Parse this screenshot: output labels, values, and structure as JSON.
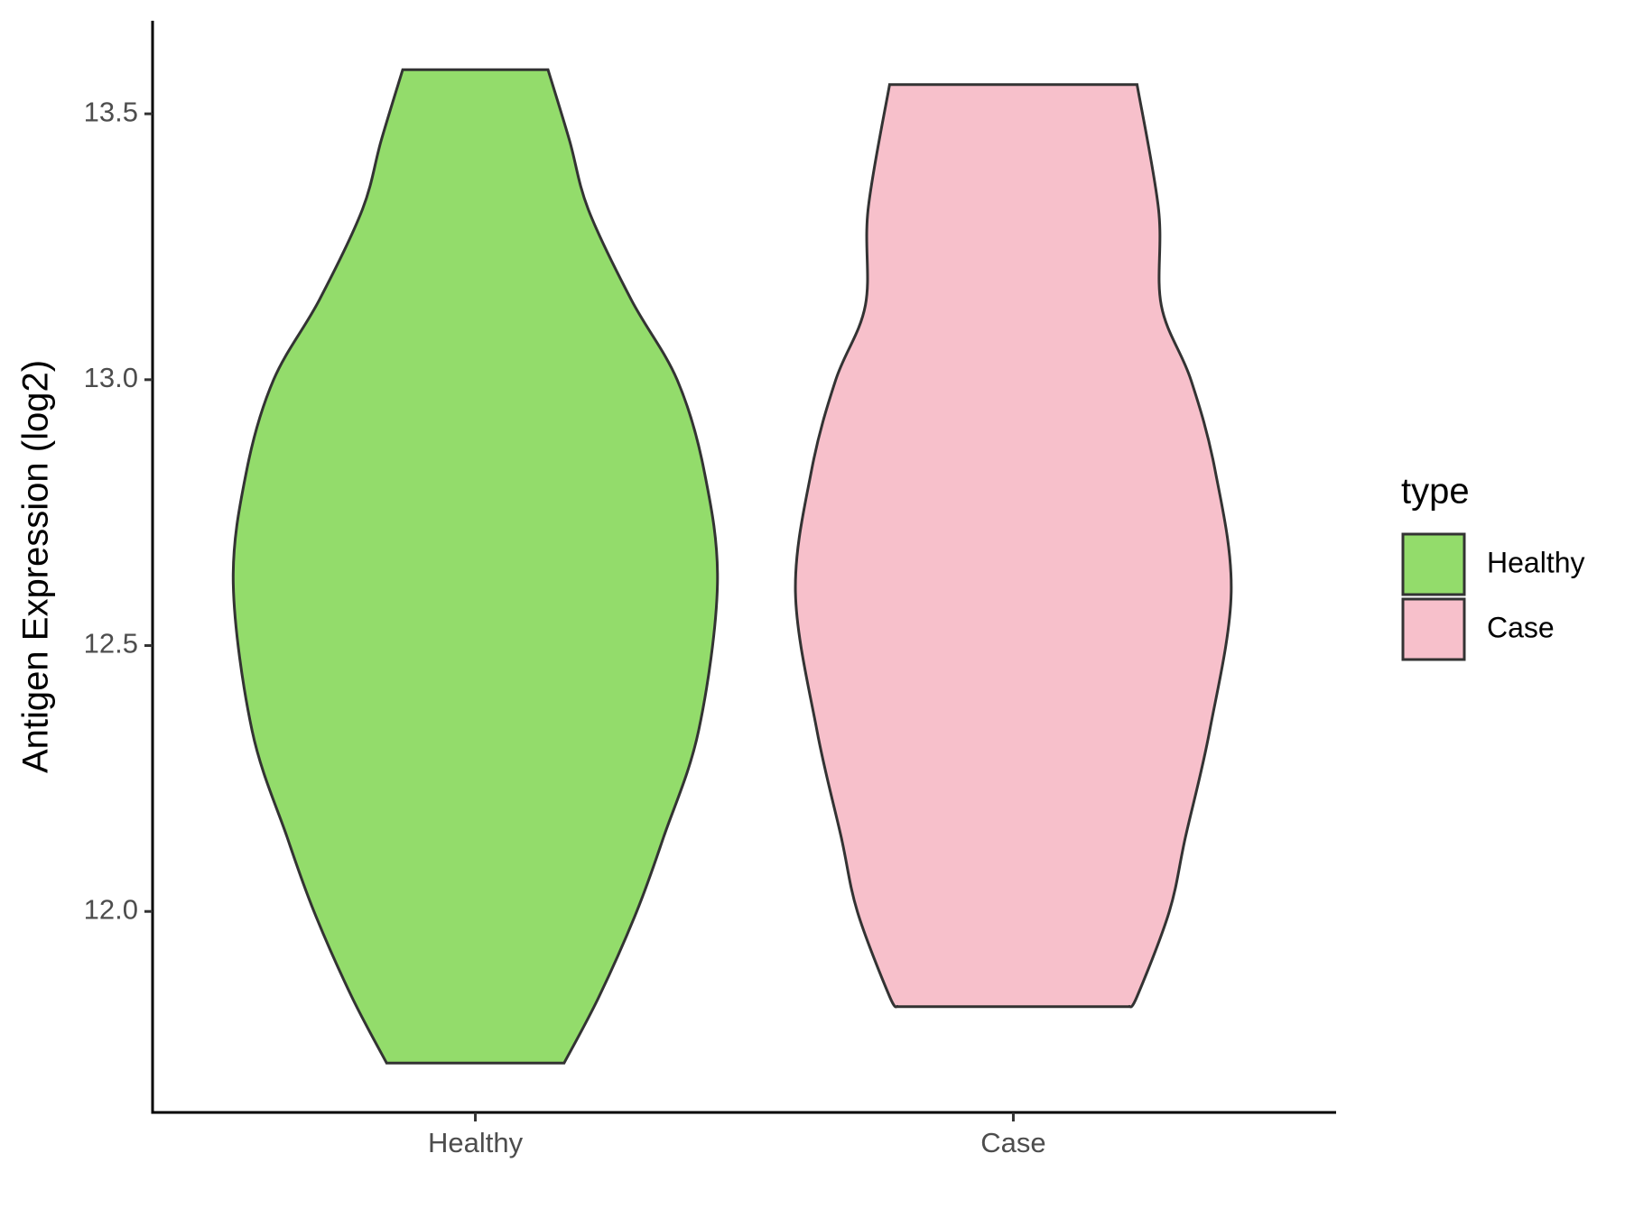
{
  "chart_data": {
    "type": "violin",
    "y_label": "Antigen Expression (log2)",
    "categories": [
      "Healthy",
      "Case"
    ],
    "ylim": [
      11.622,
      13.675
    ],
    "yticks": [
      {
        "value": 12,
        "label": "12.0"
      },
      12.5,
      {
        "value": 13,
        "label": "13.0"
      },
      13.5
    ],
    "legend_title": "type",
    "legend_position": "right",
    "series": [
      {
        "name": "Healthy",
        "color": "#93dc6b",
        "y": [
          11.715,
          11.84,
          12.0,
          12.14,
          12.34,
          12.616,
          12.83,
          13.0,
          13.15,
          13.32,
          13.45,
          13.583
        ],
        "widths": [
          0.33,
          0.46,
          0.6,
          0.7,
          0.83,
          0.9,
          0.85,
          0.75,
          0.58,
          0.42,
          0.35,
          0.27
        ]
      },
      {
        "name": "Case",
        "color": "#f7c0cb",
        "y": [
          11.821,
          11.84,
          12.0,
          12.14,
          12.34,
          12.6,
          12.83,
          13.0,
          13.14,
          13.32,
          13.555
        ],
        "widths": [
          0.43,
          0.46,
          0.58,
          0.64,
          0.73,
          0.81,
          0.75,
          0.66,
          0.55,
          0.54,
          0.46
        ]
      }
    ]
  }
}
